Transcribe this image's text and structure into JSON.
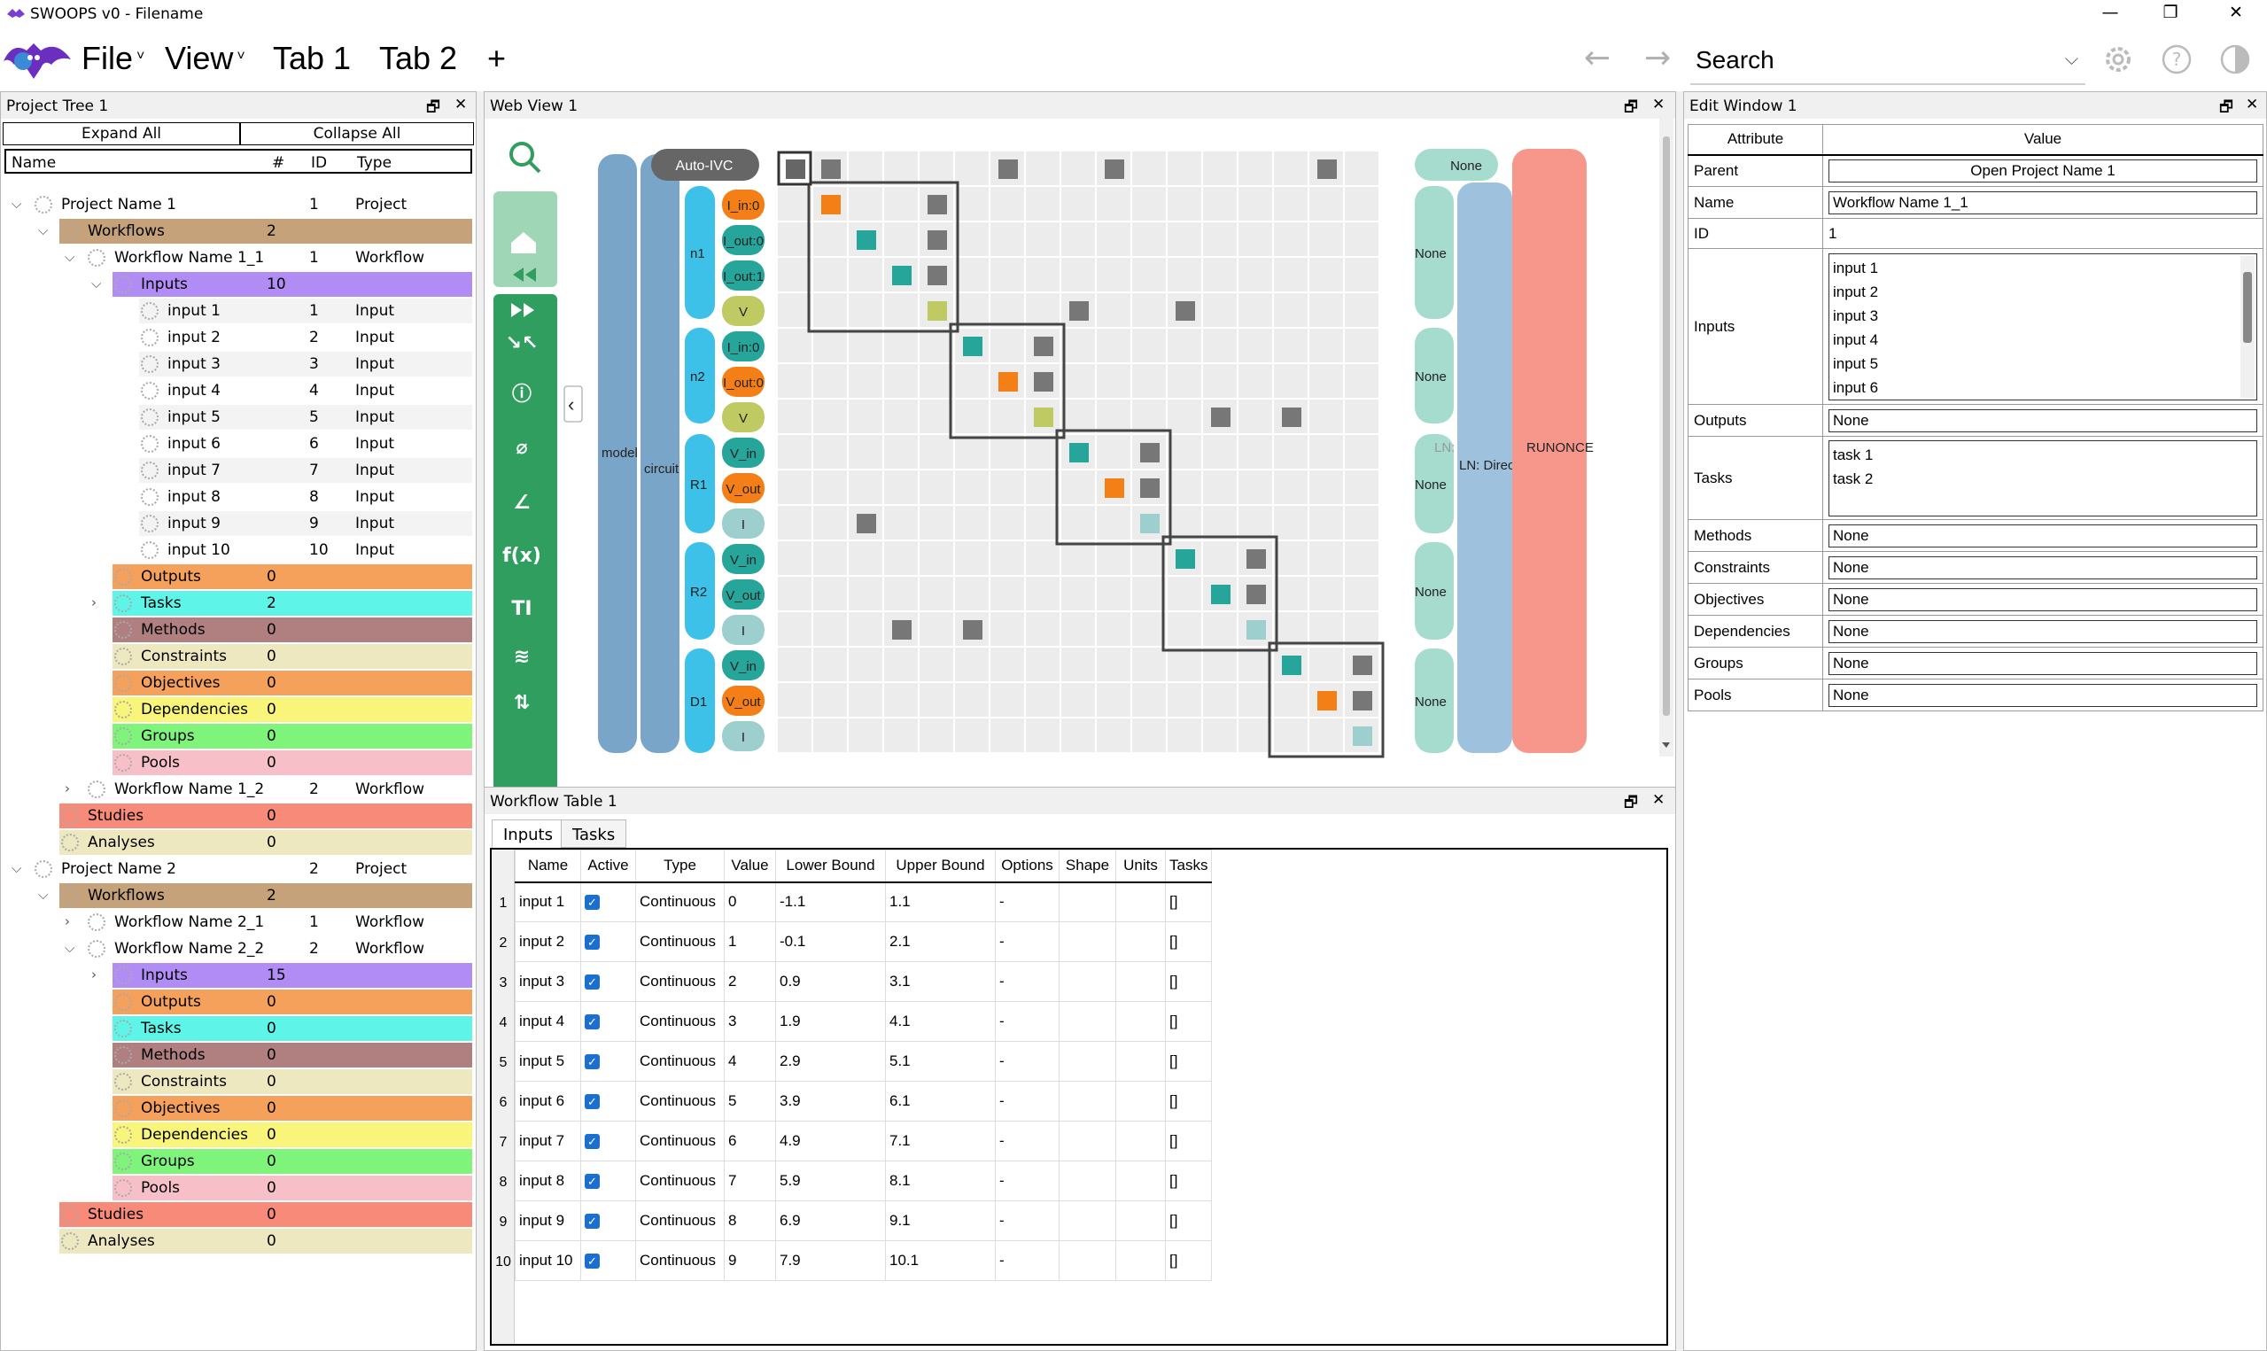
{
  "app": {
    "title": "SWOOPS v0 - Filename"
  },
  "menus": {
    "file": "File",
    "view": "View",
    "tab1": "Tab 1",
    "tab2": "Tab 2",
    "add": "+",
    "back": "←",
    "forward": "→"
  },
  "search": {
    "placeholder": "Search"
  },
  "colors": {
    "workflows": "#c6a27a",
    "inputs": "#b18cf5",
    "outputs": "#f5a05b",
    "tasks": "#5ef5e8",
    "methods": "#b07f7f",
    "constraints": "#ede8c0",
    "objectives": "#f5a05b",
    "dependencies": "#f8f57a",
    "groups": "#7ef57a",
    "pools": "#f7c0c8",
    "studies": "#f78a78",
    "analyses": "#ede8c0"
  },
  "project_tree": {
    "title": "Project Tree 1",
    "expand": "Expand All",
    "collapse": "Collapse All",
    "headers": {
      "name": "Name",
      "count": "#",
      "id": "ID",
      "type": "Type"
    },
    "rows": [
      {
        "indent": 0,
        "chev": "⌵",
        "name": "Project Name 1",
        "count": "",
        "id": "1",
        "type": "Project",
        "color": ""
      },
      {
        "indent": 1,
        "chev": "⌵",
        "name": "Workflows",
        "count": "2",
        "id": "",
        "type": "",
        "color": "workflows"
      },
      {
        "indent": 2,
        "chev": "⌵",
        "name": "Workflow Name 1_1",
        "count": "",
        "id": "1",
        "type": "Workflow",
        "color": ""
      },
      {
        "indent": 3,
        "chev": "⌵",
        "name": "Inputs",
        "count": "10",
        "id": "",
        "type": "",
        "color": "inputs"
      },
      {
        "indent": 4,
        "chev": "",
        "name": "input 1",
        "count": "",
        "id": "1",
        "type": "Input",
        "color": "alt"
      },
      {
        "indent": 4,
        "chev": "",
        "name": "input 2",
        "count": "",
        "id": "2",
        "type": "Input",
        "color": ""
      },
      {
        "indent": 4,
        "chev": "",
        "name": "input 3",
        "count": "",
        "id": "3",
        "type": "Input",
        "color": "alt"
      },
      {
        "indent": 4,
        "chev": "",
        "name": "input 4",
        "count": "",
        "id": "4",
        "type": "Input",
        "color": ""
      },
      {
        "indent": 4,
        "chev": "",
        "name": "input 5",
        "count": "",
        "id": "5",
        "type": "Input",
        "color": "alt"
      },
      {
        "indent": 4,
        "chev": "",
        "name": "input 6",
        "count": "",
        "id": "6",
        "type": "Input",
        "color": ""
      },
      {
        "indent": 4,
        "chev": "",
        "name": "input 7",
        "count": "",
        "id": "7",
        "type": "Input",
        "color": "alt"
      },
      {
        "indent": 4,
        "chev": "",
        "name": "input 8",
        "count": "",
        "id": "8",
        "type": "Input",
        "color": ""
      },
      {
        "indent": 4,
        "chev": "",
        "name": "input 9",
        "count": "",
        "id": "9",
        "type": "Input",
        "color": "alt"
      },
      {
        "indent": 4,
        "chev": "",
        "name": "input 10",
        "count": "",
        "id": "10",
        "type": "Input",
        "color": ""
      },
      {
        "indent": 3,
        "chev": "",
        "name": "Outputs",
        "count": "0",
        "id": "",
        "type": "",
        "color": "outputs"
      },
      {
        "indent": 3,
        "chev": "›",
        "name": "Tasks",
        "count": "2",
        "id": "",
        "type": "",
        "color": "tasks"
      },
      {
        "indent": 3,
        "chev": "",
        "name": "Methods",
        "count": "0",
        "id": "",
        "type": "",
        "color": "methods"
      },
      {
        "indent": 3,
        "chev": "",
        "name": "Constraints",
        "count": "0",
        "id": "",
        "type": "",
        "color": "constraints"
      },
      {
        "indent": 3,
        "chev": "",
        "name": "Objectives",
        "count": "0",
        "id": "",
        "type": "",
        "color": "objectives"
      },
      {
        "indent": 3,
        "chev": "",
        "name": "Dependencies",
        "count": "0",
        "id": "",
        "type": "",
        "color": "dependencies"
      },
      {
        "indent": 3,
        "chev": "",
        "name": "Groups",
        "count": "0",
        "id": "",
        "type": "",
        "color": "groups"
      },
      {
        "indent": 3,
        "chev": "",
        "name": "Pools",
        "count": "0",
        "id": "",
        "type": "",
        "color": "pools"
      },
      {
        "indent": 2,
        "chev": "›",
        "name": "Workflow Name 1_2",
        "count": "",
        "id": "2",
        "type": "Workflow",
        "color": ""
      },
      {
        "indent": 1,
        "chev": "",
        "name": "Studies",
        "count": "0",
        "id": "",
        "type": "",
        "color": "studies"
      },
      {
        "indent": 1,
        "chev": "",
        "name": "Analyses",
        "count": "0",
        "id": "",
        "type": "",
        "color": "analyses"
      },
      {
        "indent": 0,
        "chev": "⌵",
        "name": "Project Name 2",
        "count": "",
        "id": "2",
        "type": "Project",
        "color": ""
      },
      {
        "indent": 1,
        "chev": "⌵",
        "name": "Workflows",
        "count": "2",
        "id": "",
        "type": "",
        "color": "workflows"
      },
      {
        "indent": 2,
        "chev": "›",
        "name": "Workflow Name 2_1",
        "count": "",
        "id": "1",
        "type": "Workflow",
        "color": ""
      },
      {
        "indent": 2,
        "chev": "⌵",
        "name": "Workflow Name 2_2",
        "count": "",
        "id": "2",
        "type": "Workflow",
        "color": ""
      },
      {
        "indent": 3,
        "chev": "›",
        "name": "Inputs",
        "count": "15",
        "id": "",
        "type": "",
        "color": "inputs"
      },
      {
        "indent": 3,
        "chev": "",
        "name": "Outputs",
        "count": "0",
        "id": "",
        "type": "",
        "color": "outputs"
      },
      {
        "indent": 3,
        "chev": "",
        "name": "Tasks",
        "count": "0",
        "id": "",
        "type": "",
        "color": "tasks"
      },
      {
        "indent": 3,
        "chev": "",
        "name": "Methods",
        "count": "0",
        "id": "",
        "type": "",
        "color": "methods"
      },
      {
        "indent": 3,
        "chev": "",
        "name": "Constraints",
        "count": "0",
        "id": "",
        "type": "",
        "color": "constraints"
      },
      {
        "indent": 3,
        "chev": "",
        "name": "Objectives",
        "count": "0",
        "id": "",
        "type": "",
        "color": "objectives"
      },
      {
        "indent": 3,
        "chev": "",
        "name": "Dependencies",
        "count": "0",
        "id": "",
        "type": "",
        "color": "dependencies"
      },
      {
        "indent": 3,
        "chev": "",
        "name": "Groups",
        "count": "0",
        "id": "",
        "type": "",
        "color": "groups"
      },
      {
        "indent": 3,
        "chev": "",
        "name": "Pools",
        "count": "0",
        "id": "",
        "type": "",
        "color": "pools"
      },
      {
        "indent": 1,
        "chev": "",
        "name": "Studies",
        "count": "0",
        "id": "",
        "type": "",
        "color": "studies"
      },
      {
        "indent": 1,
        "chev": "",
        "name": "Analyses",
        "count": "0",
        "id": "",
        "type": "",
        "color": "analyses"
      }
    ]
  },
  "web_view": {
    "title": "Web View 1",
    "auto_ivc": "Auto-IVC",
    "none_top": "None",
    "model": "model",
    "circuit": "circuit",
    "ln_direct": "LN: Direct",
    "ln": "LN:",
    "runonce": "RUNONCE",
    "collapse_arrow": "‹",
    "groups": [
      {
        "label": "n1"
      },
      {
        "label": "n2"
      },
      {
        "label": "R1"
      },
      {
        "label": "R2"
      },
      {
        "label": "D1"
      }
    ],
    "group_none": [
      "None",
      "None",
      "None",
      "None",
      "None"
    ],
    "vars": [
      "I_in:0",
      "I_out:0",
      "I_out:1",
      "V",
      "I_in:0",
      "I_out:0",
      "V",
      "V_in",
      "V_out",
      "I",
      "V_in",
      "V_out",
      "I",
      "V_in",
      "V_out",
      "I"
    ],
    "var_colors": [
      "#f57f17",
      "#26a69a",
      "#26a69a",
      "#c0ca63",
      "#26a69a",
      "#f57f17",
      "#c0ca63",
      "#26a69a",
      "#f57f17",
      "#9ecfcf",
      "#26a69a",
      "#26a69a",
      "#9ecfcf",
      "#26a69a",
      "#f57f17",
      "#9ecfcf"
    ],
    "sidebar_icons": [
      "search-icon",
      "home-icon",
      "rewind-icon",
      "fast-forward-icon",
      "collapse-icon",
      "info-icon",
      "hide-icon",
      "axis-icon",
      "function-icon",
      "text-size-icon",
      "layers-icon",
      "sort-icon"
    ]
  },
  "workflow_table": {
    "title": "Workflow Table 1",
    "tabs": [
      "Inputs",
      "Tasks"
    ],
    "headers": [
      "Name",
      "Active",
      "Type",
      "Value",
      "Lower Bound",
      "Upper Bound",
      "Options",
      "Shape",
      "Units",
      "Tasks"
    ],
    "rows": [
      [
        "input 1",
        "✓",
        "Continuous",
        "0",
        "-1.1",
        "1.1",
        "-",
        "",
        "",
        "[]"
      ],
      [
        "input 2",
        "✓",
        "Continuous",
        "1",
        "-0.1",
        "2.1",
        "-",
        "",
        "",
        "[]"
      ],
      [
        "input 3",
        "✓",
        "Continuous",
        "2",
        "0.9",
        "3.1",
        "-",
        "",
        "",
        "[]"
      ],
      [
        "input 4",
        "✓",
        "Continuous",
        "3",
        "1.9",
        "4.1",
        "-",
        "",
        "",
        "[]"
      ],
      [
        "input 5",
        "✓",
        "Continuous",
        "4",
        "2.9",
        "5.1",
        "-",
        "",
        "",
        "[]"
      ],
      [
        "input 6",
        "✓",
        "Continuous",
        "5",
        "3.9",
        "6.1",
        "-",
        "",
        "",
        "[]"
      ],
      [
        "input 7",
        "✓",
        "Continuous",
        "6",
        "4.9",
        "7.1",
        "-",
        "",
        "",
        "[]"
      ],
      [
        "input 8",
        "✓",
        "Continuous",
        "7",
        "5.9",
        "8.1",
        "-",
        "",
        "",
        "[]"
      ],
      [
        "input 9",
        "✓",
        "Continuous",
        "8",
        "6.9",
        "9.1",
        "-",
        "",
        "",
        "[]"
      ],
      [
        "input 10",
        "✓",
        "Continuous",
        "9",
        "7.9",
        "10.1",
        "-",
        "",
        "",
        "[]"
      ]
    ]
  },
  "edit_window": {
    "title": "Edit Window 1",
    "headers": {
      "attribute": "Attribute",
      "value": "Value"
    },
    "parent": {
      "label": "Parent",
      "value": "Open Project Name 1"
    },
    "name": {
      "label": "Name",
      "value": "Workflow Name 1_1"
    },
    "id": {
      "label": "ID",
      "value": "1"
    },
    "inputs": {
      "label": "Inputs",
      "items": [
        "input 1",
        "input 2",
        "input 3",
        "input 4",
        "input 5",
        "input 6"
      ]
    },
    "outputs": {
      "label": "Outputs",
      "value": "None"
    },
    "tasks": {
      "label": "Tasks",
      "items": [
        "task 1",
        "task 2"
      ]
    },
    "methods": {
      "label": "Methods",
      "value": "None"
    },
    "constraints": {
      "label": "Constraints",
      "value": "None"
    },
    "objectives": {
      "label": "Objectives",
      "value": "None"
    },
    "dependencies": {
      "label": "Dependencies",
      "value": "None"
    },
    "groups": {
      "label": "Groups",
      "value": "None"
    },
    "pools": {
      "label": "Pools",
      "value": "None"
    }
  }
}
